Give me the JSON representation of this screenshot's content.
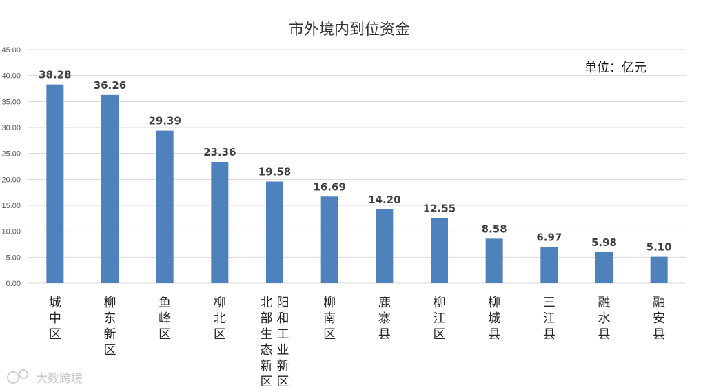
{
  "chart_data": {
    "type": "bar",
    "title": "市外境内到位资金",
    "unit_label": "单位：亿元",
    "categories": [
      "城中区",
      "柳东新区",
      "鱼峰区",
      "柳北区",
      "阳和工业新区 北部生态新区",
      "柳南区",
      "鹿寨县",
      "柳江区",
      "柳城县",
      "三江县",
      "融水县",
      "融安县"
    ],
    "category_lines": [
      [
        "城中区"
      ],
      [
        "柳东新区"
      ],
      [
        "鱼峰区"
      ],
      [
        "柳北区"
      ],
      [
        "阳和工业新区",
        "北部生态新区"
      ],
      [
        "柳南区"
      ],
      [
        "鹿寨县"
      ],
      [
        "柳江区"
      ],
      [
        "柳城县"
      ],
      [
        "三江县"
      ],
      [
        "融水县"
      ],
      [
        "融安县"
      ]
    ],
    "values": [
      38.28,
      36.26,
      29.39,
      23.36,
      19.58,
      16.69,
      14.2,
      12.55,
      8.58,
      6.97,
      5.98,
      5.1
    ],
    "value_labels": [
      "38.28",
      "36.26",
      "29.39",
      "23.36",
      "19.58",
      "16.69",
      "14.20",
      "12.55",
      "8.58",
      "6.97",
      "5.98",
      "5.10"
    ],
    "ylim": [
      0,
      45
    ],
    "yticks": [
      "0.00",
      "5.00",
      "10.00",
      "15.00",
      "20.00",
      "25.00",
      "30.00",
      "35.00",
      "40.00",
      "45.00"
    ],
    "grid": true,
    "bar_color": "#4f81bd",
    "grid_color": "#d9d9d9",
    "xlabel": "",
    "ylabel": ""
  },
  "watermark": "大数跨境"
}
